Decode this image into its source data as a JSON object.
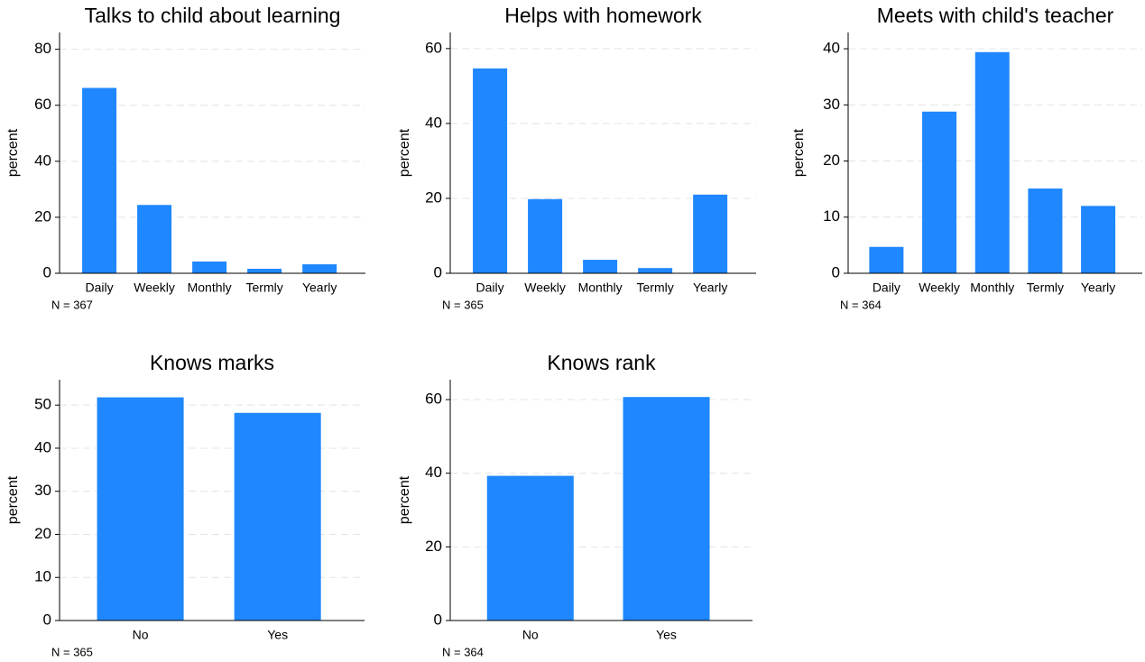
{
  "chart_data": [
    {
      "type": "bar",
      "title": "Talks to child about learning",
      "y_label": "percent",
      "note": "N = 367",
      "categories": [
        "Daily",
        "Weekly",
        "Monthly",
        "Termly",
        "Yearly"
      ],
      "values": [
        66.2,
        24.4,
        4.2,
        1.6,
        3.2
      ],
      "color": "#1f87ff",
      "ylim": [
        0,
        86
      ],
      "yticks": [
        0,
        20,
        40,
        60,
        80
      ],
      "grid": true
    },
    {
      "type": "bar",
      "title": "Helps with homework",
      "y_label": "percent",
      "note": "N = 365",
      "categories": [
        "Daily",
        "Weekly",
        "Monthly",
        "Termly",
        "Yearly"
      ],
      "values": [
        54.7,
        19.8,
        3.6,
        1.4,
        21.0
      ],
      "color": "#1f87ff",
      "ylim": [
        0,
        64.3
      ],
      "yticks": [
        0,
        20,
        40,
        60
      ],
      "grid": true
    },
    {
      "type": "bar",
      "title": "Meets with child's teacher",
      "y_label": "percent",
      "note": "N = 364",
      "categories": [
        "Daily",
        "Weekly",
        "Monthly",
        "Termly",
        "Yearly"
      ],
      "values": [
        4.7,
        28.8,
        39.4,
        15.1,
        12.0
      ],
      "color": "#1f87ff",
      "ylim": [
        0,
        42.9
      ],
      "yticks": [
        0,
        10,
        20,
        30,
        40
      ],
      "grid": true
    },
    {
      "type": "bar",
      "title": "Knows marks",
      "y_label": "percent",
      "note": "N = 365",
      "categories": [
        "No",
        "Yes"
      ],
      "values": [
        51.8,
        48.2
      ],
      "color": "#1f87ff",
      "ylim": [
        0,
        55.9
      ],
      "yticks": [
        0,
        10,
        20,
        30,
        40,
        50
      ],
      "grid": true
    },
    {
      "type": "bar",
      "title": "Knows rank",
      "y_label": "percent",
      "note": "N = 364",
      "categories": [
        "No",
        "Yes"
      ],
      "values": [
        39.3,
        60.7
      ],
      "color": "#1f87ff",
      "ylim": [
        0,
        65.4
      ],
      "yticks": [
        0,
        20,
        40,
        60
      ],
      "grid": true
    }
  ]
}
